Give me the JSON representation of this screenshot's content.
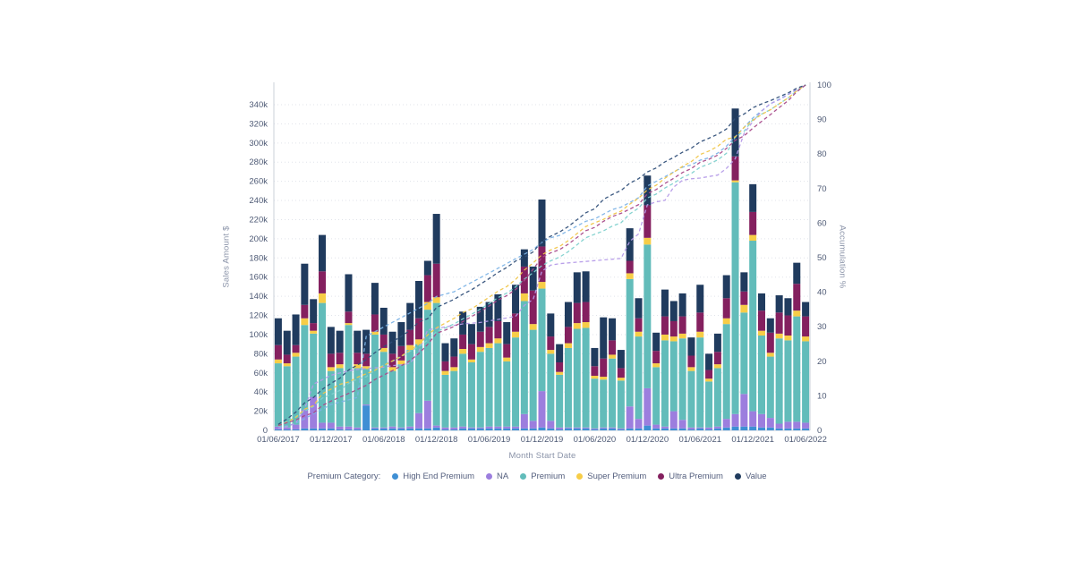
{
  "chart_data": {
    "type": "bar",
    "subtype": "stacked-bars-with-cumulative-percent-lines",
    "title": "",
    "xlabel": "Month Start Date",
    "ylabel": "Sales Amount $",
    "ylabel_right": "Accumulation %",
    "unit": "USD thousands",
    "grid": "horizontal-dotted",
    "legend_position": "bottom-center",
    "y_left": {
      "min": 0,
      "max": 340,
      "step": 20,
      "tick_labels": [
        "0",
        "20k",
        "40k",
        "60k",
        "80k",
        "100k",
        "120k",
        "140k",
        "160k",
        "180k",
        "200k",
        "220k",
        "240k",
        "260k",
        "280k",
        "300k",
        "320k",
        "340k"
      ]
    },
    "y_right": {
      "min": 0,
      "max": 100,
      "step": 10,
      "tick_labels": [
        "0",
        "10",
        "20",
        "30",
        "40",
        "50",
        "60",
        "70",
        "80",
        "90",
        "100"
      ]
    },
    "x_visible_tick_labels": [
      "01/06/2017",
      "01/12/2017",
      "01/06/2018",
      "01/12/2018",
      "01/06/2019",
      "01/12/2019",
      "01/06/2020",
      "01/12/2020",
      "01/06/2021",
      "01/12/2021",
      "01/06/2022"
    ],
    "x_visible_every": 6,
    "categories": [
      "01/06/2017",
      "01/07/2017",
      "01/08/2017",
      "01/09/2017",
      "01/10/2017",
      "01/11/2017",
      "01/12/2017",
      "01/01/2018",
      "01/02/2018",
      "01/03/2018",
      "01/04/2018",
      "01/05/2018",
      "01/06/2018",
      "01/07/2018",
      "01/08/2018",
      "01/09/2018",
      "01/10/2018",
      "01/11/2018",
      "01/12/2018",
      "01/01/2019",
      "01/02/2019",
      "01/03/2019",
      "01/04/2019",
      "01/05/2019",
      "01/06/2019",
      "01/07/2019",
      "01/08/2019",
      "01/09/2019",
      "01/10/2019",
      "01/11/2019",
      "01/12/2019",
      "01/01/2020",
      "01/02/2020",
      "01/03/2020",
      "01/04/2020",
      "01/05/2020",
      "01/06/2020",
      "01/07/2020",
      "01/08/2020",
      "01/09/2020",
      "01/10/2020",
      "01/11/2020",
      "01/12/2020",
      "01/01/2021",
      "01/02/2021",
      "01/03/2021",
      "01/04/2021",
      "01/05/2021",
      "01/06/2021",
      "01/07/2021",
      "01/08/2021",
      "01/09/2021",
      "01/10/2021",
      "01/11/2021",
      "01/12/2021",
      "01/01/2022",
      "01/02/2022",
      "01/03/2022",
      "01/04/2022",
      "01/05/2022",
      "01/06/2022"
    ],
    "series": [
      {
        "name": "High End Premium",
        "bar_color": "#3f8fd4",
        "line_color": "#7cb3e6",
        "values": [
          1,
          1,
          1,
          2,
          2,
          2,
          2,
          1,
          1,
          1,
          26,
          2,
          2,
          2,
          2,
          2,
          2,
          2,
          3,
          1,
          1,
          2,
          2,
          2,
          2,
          2,
          2,
          2,
          2,
          2,
          3,
          2,
          1,
          2,
          2,
          2,
          1,
          2,
          2,
          1,
          2,
          2,
          5,
          2,
          2,
          2,
          2,
          1,
          2,
          1,
          2,
          3,
          4,
          4,
          4,
          3,
          3,
          2,
          2,
          2,
          2
        ]
      },
      {
        "name": "NA",
        "bar_color": "#9c7ede",
        "line_color": "#b59be8",
        "values": [
          3,
          2,
          5,
          19,
          33,
          6,
          6,
          3,
          3,
          2,
          1,
          1,
          1,
          2,
          1,
          2,
          16,
          29,
          2,
          2,
          2,
          2,
          1,
          1,
          2,
          2,
          2,
          2,
          15,
          8,
          38,
          8,
          2,
          1,
          1,
          1,
          1,
          1,
          1,
          1,
          23,
          10,
          39,
          4,
          2,
          18,
          9,
          2,
          1,
          2,
          2,
          9,
          13,
          34,
          16,
          14,
          10,
          5,
          7,
          7,
          6
        ]
      },
      {
        "name": "Premium",
        "bar_color": "#62bcba",
        "line_color": "#80d1ce",
        "values": [
          66,
          64,
          71,
          89,
          66,
          125,
          54,
          61,
          106,
          62,
          37,
          97,
          79,
          58,
          66,
          80,
          72,
          95,
          128,
          55,
          59,
          76,
          68,
          79,
          82,
          87,
          68,
          93,
          118,
          95,
          107,
          70,
          55,
          83,
          103,
          104,
          52,
          50,
          72,
          50,
          133,
          86,
          150,
          60,
          90,
          73,
          85,
          59,
          94,
          48,
          61,
          99,
          242,
          85,
          178,
          82,
          64,
          89,
          85,
          110,
          85
        ]
      },
      {
        "name": "Super Premium",
        "bar_color": "#f7cd47",
        "line_color": "#f0c64b",
        "values": [
          4,
          3,
          4,
          7,
          3,
          10,
          4,
          4,
          2,
          4,
          3,
          3,
          4,
          4,
          4,
          5,
          5,
          8,
          6,
          4,
          4,
          5,
          3,
          5,
          5,
          5,
          4,
          6,
          8,
          6,
          7,
          4,
          3,
          5,
          6,
          6,
          3,
          3,
          4,
          3,
          6,
          5,
          7,
          4,
          6,
          5,
          5,
          4,
          6,
          3,
          4,
          6,
          2,
          8,
          6,
          5,
          4,
          5,
          5,
          6,
          5
        ]
      },
      {
        "name": "Ultra Premium",
        "bar_color": "#84205f",
        "line_color": "#a84a8a",
        "values": [
          15,
          9,
          8,
          14,
          8,
          23,
          14,
          12,
          12,
          12,
          13,
          18,
          14,
          14,
          15,
          16,
          22,
          28,
          35,
          10,
          11,
          15,
          16,
          16,
          17,
          18,
          14,
          19,
          28,
          35,
          37,
          14,
          10,
          17,
          21,
          21,
          10,
          19,
          15,
          10,
          13,
          14,
          34,
          13,
          19,
          16,
          18,
          12,
          20,
          9,
          13,
          21,
          25,
          14,
          24,
          21,
          21,
          22,
          21,
          28,
          21
        ]
      },
      {
        "name": "Value",
        "bar_color": "#203b5e",
        "line_color": "#2f4e78",
        "values": [
          28,
          25,
          32,
          43,
          25,
          38,
          28,
          23,
          39,
          23,
          25,
          33,
          28,
          23,
          25,
          28,
          39,
          15,
          52,
          19,
          19,
          24,
          21,
          26,
          26,
          28,
          23,
          30,
          18,
          25,
          49,
          24,
          19,
          26,
          32,
          32,
          19,
          43,
          23,
          19,
          34,
          21,
          31,
          19,
          28,
          21,
          24,
          19,
          29,
          17,
          19,
          24,
          50,
          20,
          29,
          18,
          15,
          18,
          18,
          22,
          15
        ]
      }
    ]
  },
  "legend": {
    "label": "Premium Category:",
    "items": [
      "High End Premium",
      "NA",
      "Premium",
      "Super Premium",
      "Ultra Premium",
      "Value"
    ]
  },
  "axes_titles": {
    "left": "Sales Amount $",
    "right": "Accumulation %",
    "bottom": "Month Start Date"
  },
  "style": {
    "tick_text_color": "#4e5a75",
    "axis_title_color": "#8a93a8",
    "legend_text_color": "#535e7d",
    "gridline_color": "#e0e3ea",
    "axis_line_color": "#cbd0da",
    "background": "#ffffff"
  }
}
